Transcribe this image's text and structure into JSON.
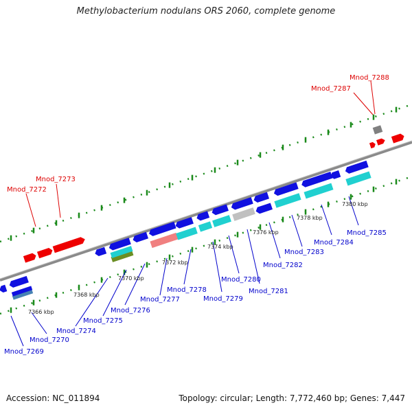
{
  "title": "Methylobacterium nodulans ORS 2060, complete genome",
  "footer": {
    "accession": "Accession: NC_011894",
    "topology": "Topology: circular; Length: 7,772,460 bp; Genes: 7,447"
  },
  "colors": {
    "forward_label": "#dd0000",
    "reverse_label": "#0000cc",
    "backbone": "#8a8a8a",
    "dots": "#1a8a1a",
    "gene_blue": "#1010e0",
    "gene_red": "#ee0000",
    "gene_cyan": "#20d0d0",
    "gene_grey": "#c0c0c0",
    "gene_pink": "#f08080",
    "gene_olive": "#6b8e23",
    "gene_steel": "#4682b4"
  },
  "ticks": [
    "7366 kbp",
    "7368 kbp",
    "7370 kbp",
    "7372 kbp",
    "7374 kbp",
    "7376 kbp",
    "7378 kbp",
    "7380 kbp"
  ],
  "genes": {
    "forward": [
      "Mnod_7272",
      "Mnod_7273",
      "Mnod_7287",
      "Mnod_7288"
    ],
    "reverse": [
      "Mnod_7269",
      "Mnod_7270",
      "Mnod_7274",
      "Mnod_7275",
      "Mnod_7276",
      "Mnod_7277",
      "Mnod_7278",
      "Mnod_7279",
      "Mnod_7280",
      "Mnod_7281",
      "Mnod_7282",
      "Mnod_7283",
      "Mnod_7284",
      "Mnod_7285"
    ]
  }
}
